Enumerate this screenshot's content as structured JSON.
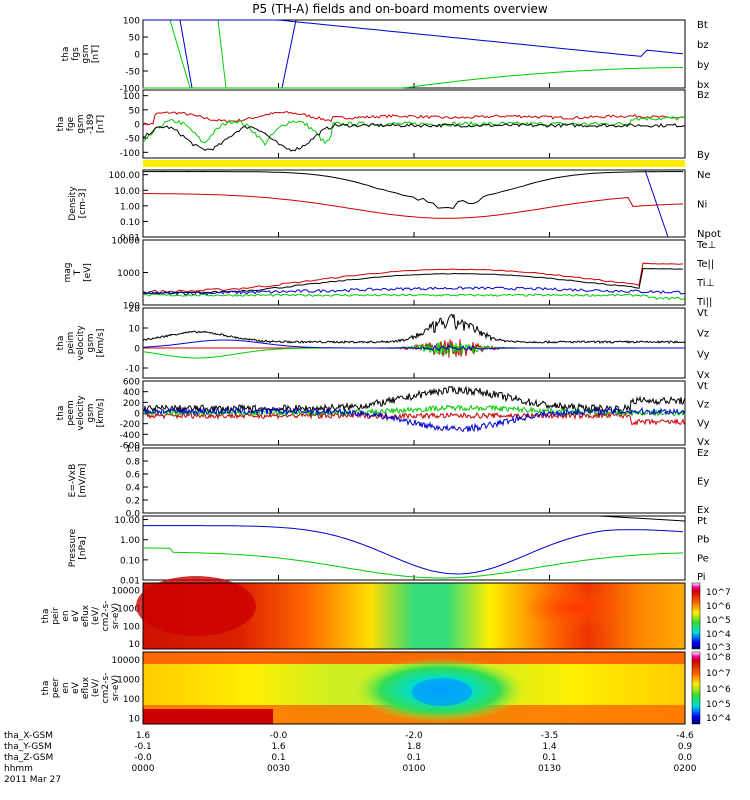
{
  "title": "P5 (TH-A) fields and on-board moments overview",
  "date": "2011 Mar 27",
  "colorbars": {
    "peir": [
      "10^7",
      "10^6",
      "10^5",
      "10^4",
      "10^3"
    ],
    "peer": [
      "10^8",
      "10^7",
      "10^6",
      "10^5",
      "10^4"
    ]
  },
  "chart_data": [
    {
      "type": "line",
      "panel": "fgs",
      "ylabel": [
        "tha",
        "fgs",
        "gsm",
        "[nT]"
      ],
      "yticks": [
        "100",
        "50",
        "0",
        "-50",
        "-100"
      ],
      "ylim": [
        -100,
        100
      ],
      "legend": [
        {
          "name": "Bt",
          "color": "#000000"
        },
        {
          "name": "bz",
          "color": "#cc0000"
        },
        {
          "name": "by",
          "color": "#00cc00"
        },
        {
          "name": "bx",
          "color": "#0000cc"
        }
      ]
    },
    {
      "type": "line",
      "panel": "fge",
      "ylabel": [
        "tha",
        "fge",
        "gsm",
        "-189",
        "[nT]"
      ],
      "yticks": [
        "100",
        "50",
        "0",
        "-50",
        "-100"
      ],
      "ylim": [
        -120,
        120
      ],
      "legend": [
        {
          "name": "Bz",
          "color": "#cc0000"
        },
        {
          "name": "By",
          "color": "#00cc00"
        }
      ]
    },
    {
      "type": "line",
      "panel": "density",
      "ylabel": [
        "Density",
        "[cm-3]"
      ],
      "yticks": [
        "100.00",
        "10.00",
        "1.00",
        "0.10",
        "0.01"
      ],
      "ylim": [
        0.01,
        200
      ],
      "yscale": "log",
      "legend": [
        {
          "name": "Ne",
          "color": "#cc0000"
        },
        {
          "name": "Ni",
          "color": "#000000"
        },
        {
          "name": "Npot",
          "color": "#0000cc"
        }
      ]
    },
    {
      "type": "line",
      "panel": "temperature",
      "ylabel": [
        "mag",
        "T",
        "[eV]"
      ],
      "yticks": [
        "10000",
        "1000",
        "100"
      ],
      "ylim": [
        100,
        10000
      ],
      "yscale": "log",
      "legend": [
        {
          "name": "Te⊥",
          "color": "#cc0000"
        },
        {
          "name": "Te||",
          "color": "#000000"
        },
        {
          "name": "Ti⊥",
          "color": "#0000cc"
        },
        {
          "name": "Ti||",
          "color": "#00cc00"
        }
      ]
    },
    {
      "type": "line",
      "panel": "peim_velocity",
      "ylabel": [
        "tha",
        "peim",
        "velocity",
        "gsm",
        "[km/s]"
      ],
      "yticks": [
        "20",
        "10",
        "0",
        "-10"
      ],
      "ylim": [
        -15,
        20
      ],
      "legend": [
        {
          "name": "Vt",
          "color": "#000000"
        },
        {
          "name": "Vz",
          "color": "#cc0000"
        },
        {
          "name": "Vy",
          "color": "#00cc00"
        },
        {
          "name": "Vx",
          "color": "#0000cc"
        }
      ]
    },
    {
      "type": "line",
      "panel": "peem_velocity",
      "ylabel": [
        "tha",
        "peem",
        "velocity",
        "gsm",
        "[km/s]"
      ],
      "yticks": [
        "600",
        "400",
        "200",
        "0",
        "-200",
        "-400",
        "-600"
      ],
      "ylim": [
        -600,
        600
      ],
      "legend": [
        {
          "name": "Vt",
          "color": "#000000"
        },
        {
          "name": "Vz",
          "color": "#cc0000"
        },
        {
          "name": "Vy",
          "color": "#00cc00"
        },
        {
          "name": "Vx",
          "color": "#0000cc"
        }
      ]
    },
    {
      "type": "line",
      "panel": "efield",
      "ylabel": [
        "E=-VxB",
        "[mV/m]"
      ],
      "yticks": [
        "1.0",
        "0.8",
        "0.6",
        "0.4",
        "0.2",
        "0.0"
      ],
      "ylim": [
        0,
        1
      ],
      "legend": [
        {
          "name": "Ez",
          "color": "#cc0000"
        },
        {
          "name": "Ey",
          "color": "#00cc00"
        },
        {
          "name": "Ex",
          "color": "#0000cc"
        }
      ]
    },
    {
      "type": "line",
      "panel": "pressure",
      "ylabel": [
        "Pressure",
        "[nPa]"
      ],
      "yticks": [
        "10.00",
        "1.00",
        "0.10",
        "0.01"
      ],
      "ylim": [
        0.01,
        15
      ],
      "yscale": "log",
      "legend": [
        {
          "name": "Pt",
          "color": "#000000"
        },
        {
          "name": "Pb",
          "color": "#cc0000"
        },
        {
          "name": "Pe",
          "color": "#00cc00"
        },
        {
          "name": "Pi",
          "color": "#0000cc"
        }
      ]
    },
    {
      "type": "heatmap",
      "panel": "peir",
      "ylabel": [
        "tha",
        "peir",
        "en",
        "eV",
        "eflux",
        "(eV/",
        "cm2-s-",
        "sr-eV)"
      ],
      "yticks": [
        "10000",
        "1000",
        "100",
        "10"
      ],
      "ylim": [
        5,
        25000
      ],
      "yscale": "log"
    },
    {
      "type": "heatmap",
      "panel": "peer",
      "ylabel": [
        "tha",
        "peer",
        "en",
        "eV",
        "eflux",
        "(eV/",
        "cm2-s-",
        "sr-eV)"
      ],
      "yticks": [
        "10000",
        "1000",
        "100",
        "10"
      ],
      "ylim": [
        5,
        25000
      ],
      "yscale": "log"
    }
  ],
  "xaxis": {
    "row_labels": [
      "tha_X-GSM",
      "tha_Y-GSM",
      "tha_Z-GSM",
      "hhmm"
    ],
    "ticks": [
      {
        "X": "1.6",
        "Y": "-0.1",
        "Z": "-0.0",
        "hhmm": "0000"
      },
      {
        "X": "-0.0",
        "Y": "1.6",
        "Z": "0.1",
        "hhmm": "0030"
      },
      {
        "X": "-2.0",
        "Y": "1.8",
        "Z": "0.1",
        "hhmm": "0100"
      },
      {
        "X": "-3.5",
        "Y": "1.4",
        "Z": "0.1",
        "hhmm": "0130"
      },
      {
        "X": "-4.6",
        "Y": "0.9",
        "Z": "0.0",
        "hhmm": "0200"
      }
    ]
  }
}
